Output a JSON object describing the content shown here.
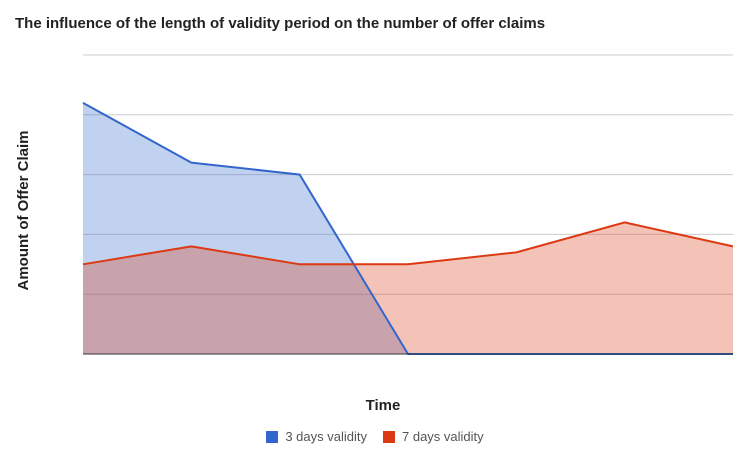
{
  "chart_data": {
    "type": "area",
    "title": "The influence of the length of validity period on the number of offer claims",
    "xlabel": "Time",
    "ylabel": "Amount of Offer Claim",
    "x": [
      0,
      1,
      2,
      3,
      4,
      5,
      6
    ],
    "ylim": [
      0,
      5
    ],
    "grid": true,
    "legend_position": "bottom",
    "series": [
      {
        "name": "3 days validity",
        "color": "#3366cc",
        "values": [
          4.2,
          3.2,
          3.0,
          0,
          0,
          0,
          0
        ]
      },
      {
        "name": "7 days validity",
        "color": "#dc3912",
        "values": [
          1.5,
          1.8,
          1.5,
          1.5,
          1.7,
          2.2,
          1.8
        ]
      }
    ]
  }
}
